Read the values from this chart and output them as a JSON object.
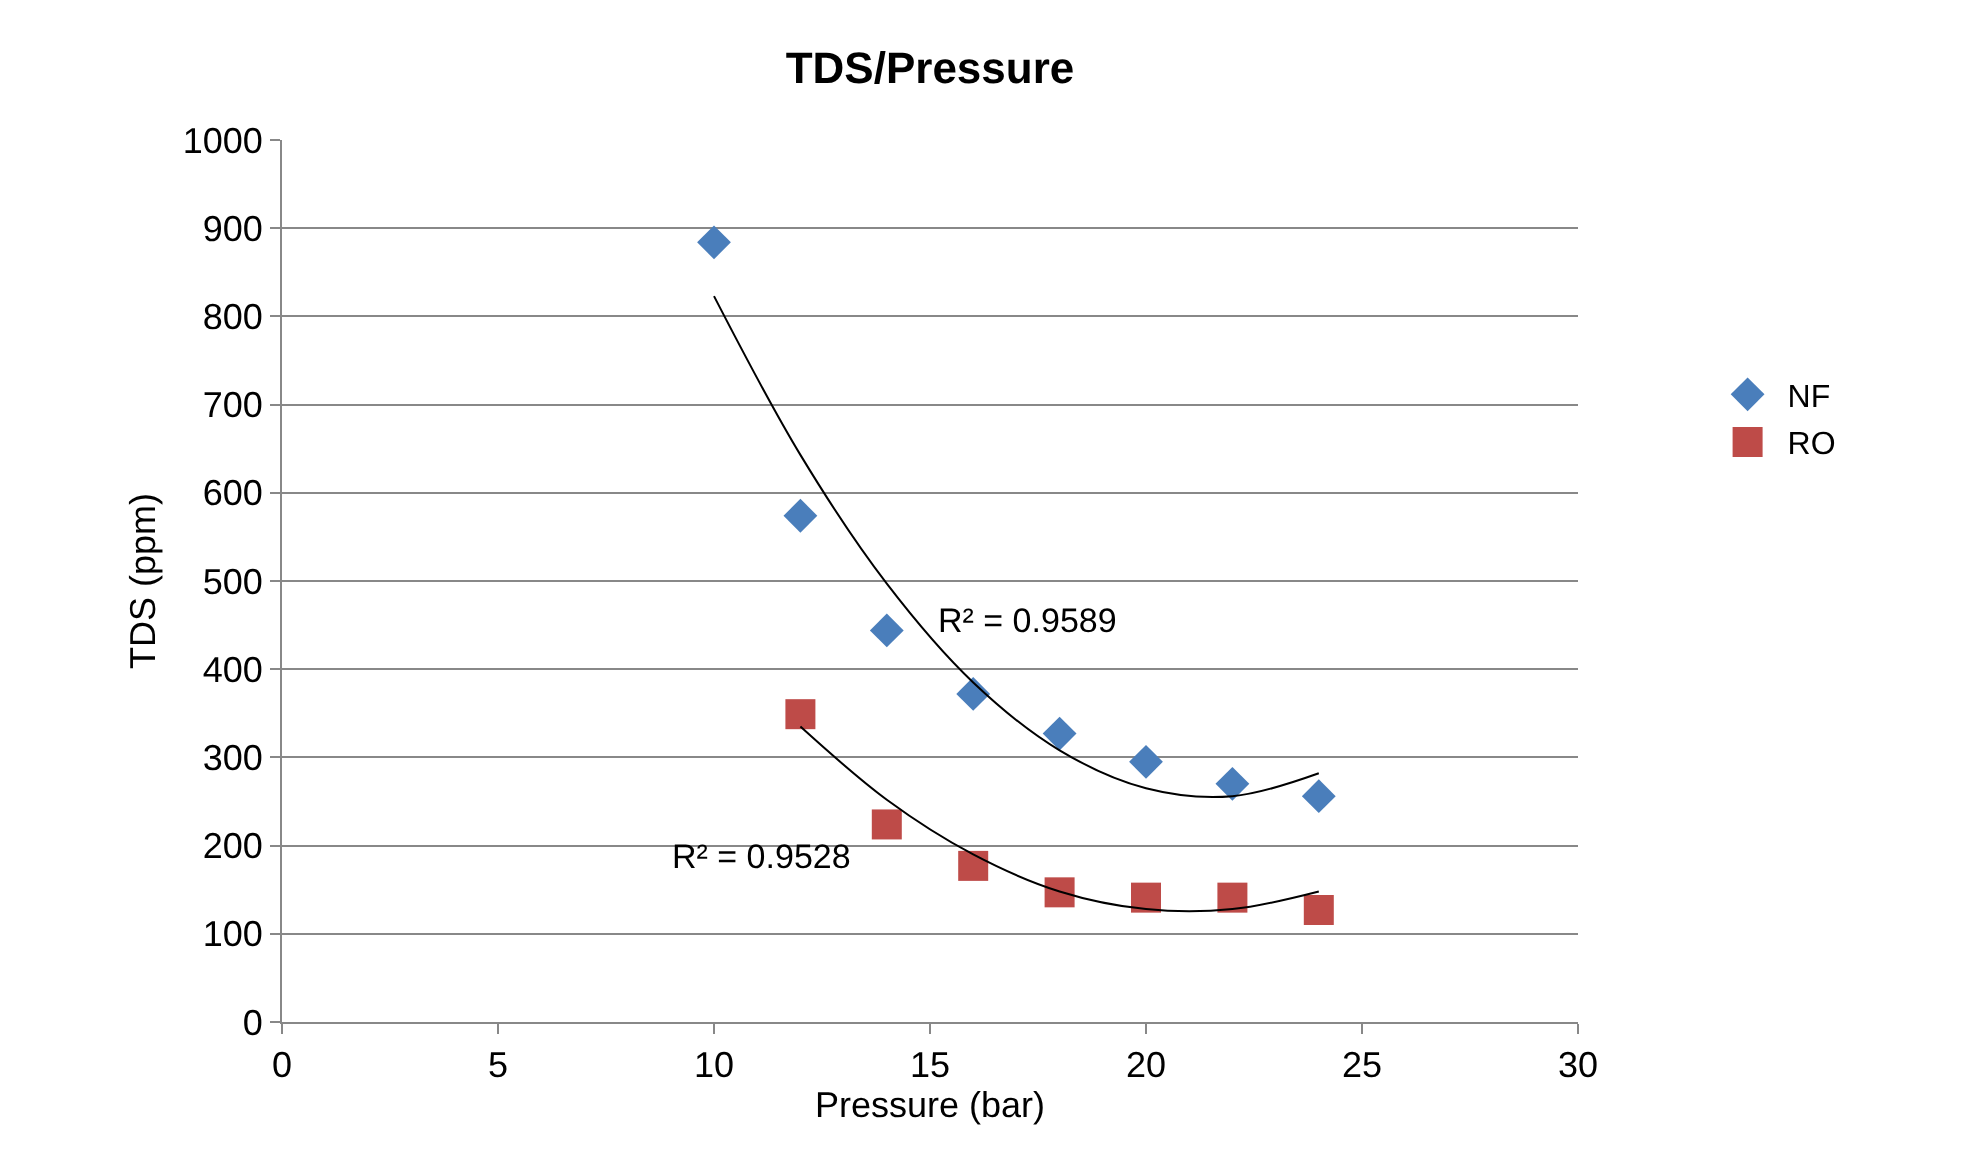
{
  "chart_data": {
    "type": "scatter",
    "title": "TDS/Pressure",
    "xlabel": "Pressure (bar)",
    "ylabel": "TDS (ppm)",
    "xlim": [
      0,
      30
    ],
    "xticks": [
      0,
      5,
      10,
      15,
      20,
      25,
      30
    ],
    "ylim": [
      0,
      1000
    ],
    "yticks": [
      0,
      100,
      200,
      300,
      400,
      500,
      600,
      700,
      800,
      900,
      1000
    ],
    "grid": "y",
    "legend": "right",
    "series": [
      {
        "name": "NF",
        "color": "#4a7ebb",
        "marker": "diamond",
        "x": [
          10,
          12,
          14,
          16,
          18,
          20,
          22,
          24
        ],
        "values": [
          884,
          574,
          444,
          372,
          327,
          295,
          270,
          256
        ]
      },
      {
        "name": "RO",
        "color": "#be4b48",
        "marker": "square",
        "x": [
          12,
          14,
          16,
          18,
          20,
          22,
          24
        ],
        "values": [
          349,
          224,
          177,
          147,
          141,
          141,
          127
        ]
      },
      {
        "type": "line",
        "color": "#000000",
        "marker": "none",
        "x": [
          10,
          12,
          14,
          16,
          18,
          20,
          22,
          24
        ],
        "values": [
          823,
          643,
          497,
          385,
          308,
          265,
          256,
          282
        ]
      },
      {
        "type": "line",
        "color": "#000000",
        "marker": "none",
        "x": [
          12,
          14,
          16,
          18,
          20,
          22,
          24
        ],
        "values": [
          335,
          252,
          190,
          148,
          128,
          128,
          148
        ]
      }
    ],
    "annotations": [
      "R² = 0.9589",
      "R² = 0.9528"
    ]
  }
}
